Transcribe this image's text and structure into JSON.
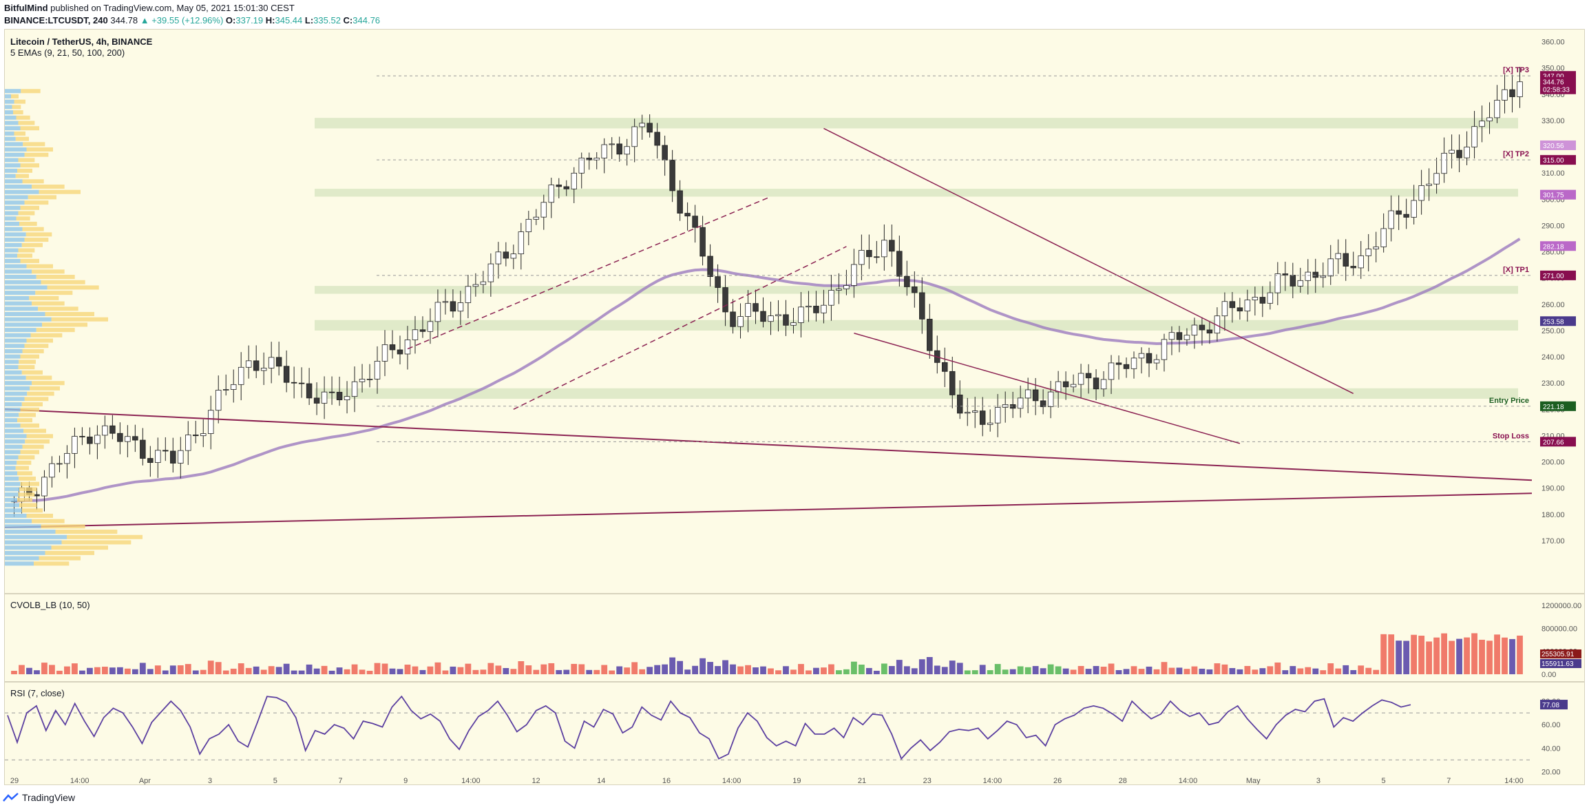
{
  "header": {
    "author": "BitfulMind",
    "published": "published on TradingView.com, May 05, 2021 15:01:30 CEST",
    "symbol": "BINANCE:LTCUSDT, 240",
    "last": "344.78",
    "change": "▲ +39.55 (+12.96%)",
    "o_label": "O:",
    "o_val": "337.19",
    "h_label": "H:",
    "h_val": "345.44",
    "l_label": "L:",
    "l_val": "335.52",
    "c_label": "C:",
    "c_val": "344.76"
  },
  "main_panel": {
    "title": "Litecoin / TetherUS, 4h, BINANCE",
    "indicator": "5 EMAs (9, 21, 50, 100, 200)",
    "bg_color": "#fdfbe6"
  },
  "volume_panel": {
    "title": "CVOLB_LB (10, 50)"
  },
  "rsi_panel": {
    "title": "RSI (7, close)"
  },
  "footer": {
    "brand": "TradingView"
  },
  "colors": {
    "bull": "#ffffff",
    "bear": "#3a3a3a",
    "ema200": "#9b7bbf",
    "trend": "#8b2252",
    "zone": "#c8dcb0",
    "vol_red": "#f07a6a",
    "vol_purple": "#6b5bb0",
    "vol_green": "#6abf69",
    "rsi": "#5b3fa0"
  },
  "chart_data": [
    {
      "type": "candlestick",
      "title": "Litecoin / TetherUS, 4h, BINANCE",
      "y_ticks": [
        170,
        180,
        190,
        200,
        210,
        220,
        230,
        240,
        250,
        260,
        270,
        280,
        290,
        300,
        310,
        320,
        330,
        340,
        350,
        360
      ],
      "ylim": [
        160,
        362
      ],
      "x_tick_labels": [
        "29",
        "14:00",
        "Apr",
        "3",
        "5",
        "7",
        "9",
        "14:00",
        "12",
        "14",
        "16",
        "14:00",
        "19",
        "21",
        "23",
        "14:00",
        "26",
        "28",
        "14:00",
        "May",
        "3",
        "5",
        "7",
        "14:00"
      ],
      "key_points": [
        {
          "date": "Mar 29",
          "close": 183
        },
        {
          "date": "Apr 3",
          "close": 213
        },
        {
          "date": "Apr 5",
          "close": 200
        },
        {
          "date": "Apr 7",
          "close": 240
        },
        {
          "date": "Apr 9",
          "close": 222
        },
        {
          "date": "Apr 12",
          "close": 248
        },
        {
          "date": "Apr 14",
          "close": 272
        },
        {
          "date": "Apr 16",
          "close": 310
        },
        {
          "date": "Apr 17",
          "close": 328
        },
        {
          "date": "Apr 18",
          "close": 256
        },
        {
          "date": "Apr 21",
          "close": 255
        },
        {
          "date": "Apr 22",
          "close": 285
        },
        {
          "date": "Apr 23",
          "close": 215
        },
        {
          "date": "Apr 25",
          "close": 226
        },
        {
          "date": "Apr 26",
          "close": 236
        },
        {
          "date": "Apr 28",
          "close": 252
        },
        {
          "date": "May 1",
          "close": 268
        },
        {
          "date": "May 3",
          "close": 278
        },
        {
          "date": "May 4",
          "close": 312
        },
        {
          "date": "May 5",
          "close": 344.76
        }
      ],
      "levels": [
        {
          "label": "[X] TP3",
          "value": 347.0,
          "tag": "347.00",
          "color": "#880e4f"
        },
        {
          "label": "",
          "value": 344.76,
          "tag": "344.76",
          "color": "#880e4f"
        },
        {
          "label": "",
          "value": 344.76,
          "tag": "02:58:33",
          "color": "#880e4f"
        },
        {
          "label": "",
          "value": 320.56,
          "tag": "320.56",
          "color": "#ce93d8"
        },
        {
          "label": "[X] TP2",
          "value": 315.0,
          "tag": "315.00",
          "color": "#880e4f"
        },
        {
          "label": "",
          "value": 301.75,
          "tag": "301.75",
          "color": "#ba68c8"
        },
        {
          "label": "",
          "value": 282.18,
          "tag": "282.18",
          "color": "#ba68c8"
        },
        {
          "label": "[X] TP1",
          "value": 271.0,
          "tag": "271.00",
          "color": "#880e4f"
        },
        {
          "label": "",
          "value": 253.58,
          "tag": "253.58",
          "color": "#4a3a8c"
        },
        {
          "label": "Entry Price",
          "value": 221.18,
          "tag": "221.18",
          "color": "#1b5e20"
        },
        {
          "label": "Stop Loss",
          "value": 207.66,
          "tag": "207.66",
          "color": "#880e4f"
        }
      ],
      "zones": [
        [
          327,
          331
        ],
        [
          301,
          304
        ],
        [
          264,
          267
        ],
        [
          250,
          254
        ],
        [
          224,
          228
        ]
      ]
    },
    {
      "type": "bar",
      "title": "CVOLB_LB (10, 50)",
      "y_ticks": [
        "1200000.00",
        "800000.00",
        "400000.00",
        "0.00"
      ],
      "ylim": [
        0,
        1250000
      ],
      "tags": [
        "255305.91",
        "155911.63"
      ],
      "volume_profile": [
        310000,
        120000,
        180000,
        140000,
        160000,
        220000,
        260000,
        300000,
        180000,
        210000,
        350000,
        420000,
        380000,
        260000,
        300000,
        240000,
        210000,
        340000,
        520000,
        660000,
        450000,
        380000,
        300000,
        260000,
        220000,
        280000,
        340000,
        410000,
        380000,
        330000,
        260000,
        240000,
        300000,
        420000,
        520000,
        610000,
        700000,
        820000,
        590000,
        470000,
        520000,
        640000,
        780000,
        900000,
        720000,
        610000,
        500000,
        420000,
        380000,
        340000,
        300000,
        270000,
        260000,
        330000,
        410000,
        520000,
        480000,
        430000,
        380000,
        330000,
        300000,
        270000,
        240000,
        300000,
        360000,
        420000,
        390000,
        340000,
        300000,
        260000,
        230000,
        210000,
        240000,
        270000,
        300000,
        280000,
        260000,
        240000,
        280000,
        330000,
        420000,
        520000,
        700000,
        980000,
        1200000,
        1100000,
        900000,
        780000,
        660000,
        560000
      ]
    },
    {
      "type": "line",
      "title": "RSI (7, close)",
      "y_ticks": [
        "80.00",
        "60.00",
        "40.00",
        "20.00"
      ],
      "ylim": [
        15,
        90
      ],
      "current": "77.08",
      "values": [
        68,
        45,
        70,
        76,
        55,
        72,
        60,
        78,
        63,
        50,
        66,
        74,
        70,
        58,
        44,
        62,
        71,
        80,
        72,
        58,
        35,
        48,
        52,
        60,
        46,
        41,
        62,
        84,
        83,
        79,
        66,
        38,
        55,
        52,
        60,
        57,
        48,
        63,
        61,
        58,
        75,
        84,
        72,
        65,
        69,
        63,
        48,
        39,
        55,
        67,
        72,
        80,
        68,
        54,
        60,
        72,
        76,
        70,
        46,
        40,
        63,
        58,
        73,
        69,
        53,
        58,
        75,
        68,
        64,
        80,
        70,
        66,
        53,
        48,
        31,
        35,
        57,
        70,
        63,
        49,
        42,
        46,
        42,
        61,
        52,
        52,
        57,
        49,
        66,
        60,
        69,
        68,
        52,
        31,
        40,
        47,
        38,
        45,
        54,
        56,
        55,
        57,
        48,
        55,
        63,
        60,
        49,
        51,
        42,
        60,
        65,
        68,
        74,
        76,
        74,
        69,
        63,
        80,
        72,
        65,
        69,
        80,
        72,
        67,
        70,
        60,
        62,
        71,
        76,
        65,
        56,
        48,
        60,
        68,
        73,
        71,
        80,
        82,
        58,
        66,
        63,
        70,
        76,
        81,
        79,
        75,
        77
      ]
    }
  ]
}
